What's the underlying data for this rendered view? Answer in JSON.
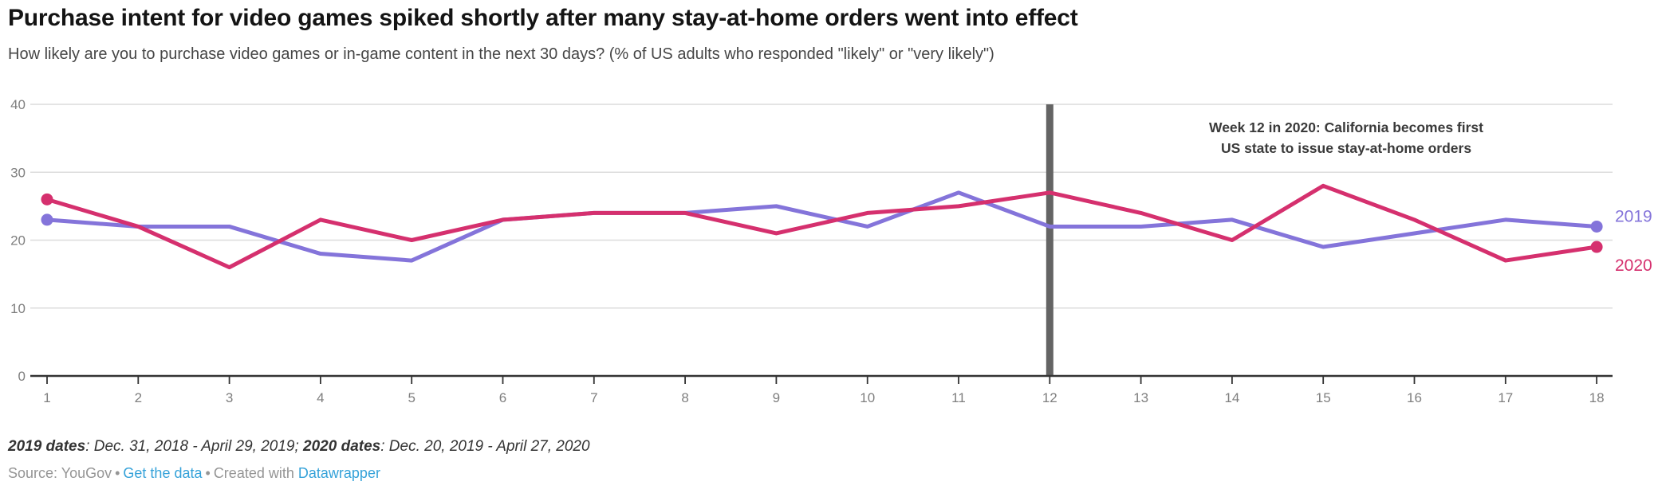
{
  "header": {
    "title": "Purchase intent for video games spiked shortly after many stay-at-home orders went into effect",
    "subtitle": "How likely are you to purchase video games or in-game content in the next 30 days? (% of US adults who responded \"likely\" or \"very likely\")"
  },
  "chart_data": {
    "type": "line",
    "x": [
      1,
      2,
      3,
      4,
      5,
      6,
      7,
      8,
      9,
      10,
      11,
      12,
      13,
      14,
      15,
      16,
      17,
      18
    ],
    "xlabel": "",
    "ylabel": "",
    "ylim": [
      0,
      40
    ],
    "y_ticks": [
      0,
      10,
      20,
      30,
      40
    ],
    "grid": "horizontal on",
    "legend_position": "end-of-line labels at right",
    "series": [
      {
        "name": "2019",
        "color": "#8474da",
        "values": [
          23,
          22,
          22,
          18,
          17,
          23,
          24,
          24,
          25,
          22,
          27,
          22,
          22,
          23,
          19,
          21,
          23,
          22
        ]
      },
      {
        "name": "2020",
        "color": "#d5306e",
        "values": [
          26,
          22,
          16,
          23,
          20,
          23,
          24,
          24,
          21,
          24,
          25,
          27,
          24,
          20,
          28,
          23,
          17,
          19
        ]
      }
    ],
    "event_marker": {
      "week": 12,
      "color": "#646464"
    },
    "annotation": {
      "line1": "Week 12 in 2020: California becomes first",
      "line2": "US state to issue stay-at-home orders",
      "color": "#3a3a3a"
    },
    "axis_color": "#333333",
    "grid_color": "#dcdcdc",
    "tick_label_color": "#7f7f7f"
  },
  "footer": {
    "note_parts": [
      {
        "text": "2019 dates",
        "bold": true
      },
      {
        "text": ": Dec. 31, 2018 - April 29, 2019; ",
        "bold": false
      },
      {
        "text": "2020 dates",
        "bold": true
      },
      {
        "text": ": Dec. 20, 2019 - April 27, 2020",
        "bold": false
      }
    ],
    "source_label": "Source: YouGov",
    "separator": "•",
    "get_data_label": "Get the data",
    "created_with_label": "Created with",
    "datawrapper_label": "Datawrapper",
    "link_color": "#35a2d9"
  }
}
